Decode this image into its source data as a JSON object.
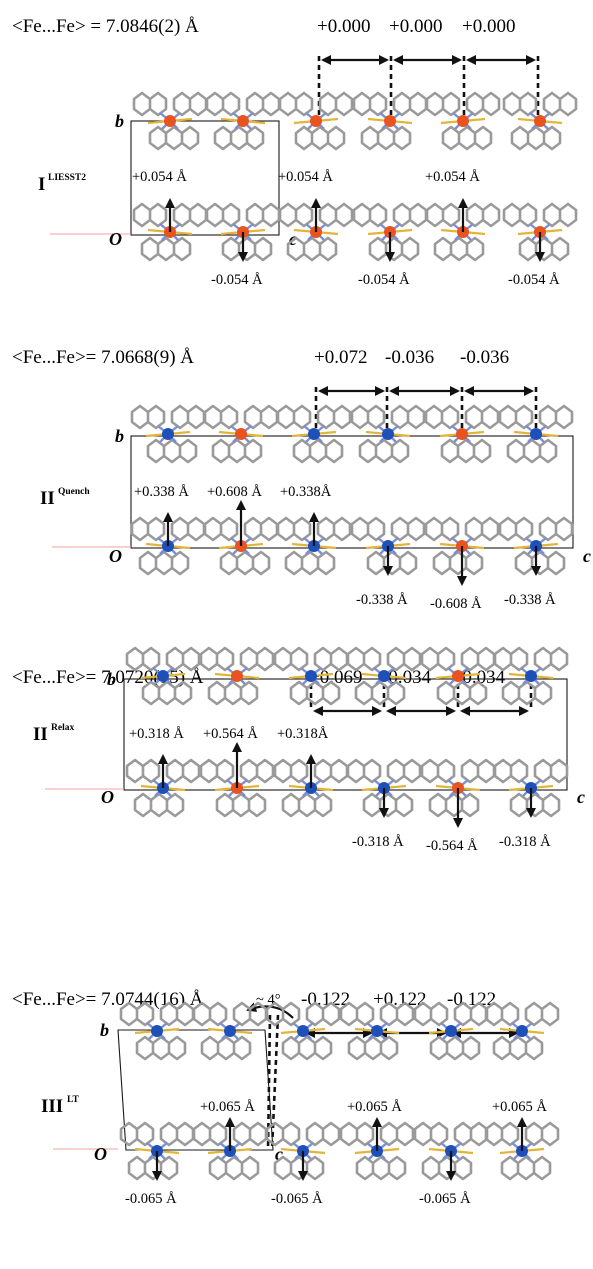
{
  "colors": {
    "high_spin_fe": "#e8531f",
    "low_spin_fe": "#1f4fb8",
    "bond_grey": "#9a9a9a",
    "nitrogen_blue": "#7b8fd6",
    "sulfur_yellow": "#e2b43a"
  },
  "axes": {
    "origin": "O",
    "b": "b",
    "c": "c"
  },
  "panels": [
    {
      "id": "p1",
      "label": "I",
      "label_sup": "LIESST2",
      "distance": "<Fe...Fe> = 7.0846(2) Å",
      "col_offsets": [
        "+0.000",
        "+0.000",
        "+0.000"
      ],
      "up_labels": [
        "+0.054 Å",
        "+0.054 Å",
        "+0.054 Å"
      ],
      "down_labels": [
        "-0.054 Å",
        "-0.054 Å",
        "-0.054 Å"
      ],
      "top_row_spin": [
        "HS",
        "HS",
        "HS",
        "HS",
        "HS",
        "HS"
      ],
      "bottom_row_spin": [
        "HS",
        "HS",
        "HS",
        "HS",
        "HS",
        "HS"
      ]
    },
    {
      "id": "p2",
      "label": "II",
      "label_sup": "Quench",
      "distance": "<Fe...Fe>= 7.0668(9) Å",
      "col_offsets": [
        "+0.072",
        "-0.036",
        "-0.036"
      ],
      "up_labels": [
        "+0.338 Å",
        "+0.608 Å",
        "+0.338Å"
      ],
      "down_labels": [
        "-0.338 Å",
        "-0.608 Å",
        "-0.338 Å"
      ],
      "top_row_spin": [
        "LS",
        "HS",
        "LS",
        "LS",
        "HS",
        "LS"
      ],
      "bottom_row_spin": [
        "LS",
        "HS",
        "LS",
        "LS",
        "HS",
        "LS"
      ]
    },
    {
      "id": "p3",
      "label": "II",
      "label_sup": "Relax",
      "distance": "<Fe...Fe>= 7.0720(15) Å",
      "col_offsets": [
        "+0.069",
        "-0.034",
        "-0.034"
      ],
      "up_labels": [
        "+0.318 Å",
        "+0.564 Å",
        "+0.318Å"
      ],
      "down_labels": [
        "-0.318 Å",
        "-0.564 Å",
        "-0.318 Å"
      ],
      "top_row_spin": [
        "LS",
        "HS",
        "LS",
        "LS",
        "HS",
        "LS"
      ],
      "bottom_row_spin": [
        "LS",
        "HS",
        "LS",
        "LS",
        "HS",
        "LS"
      ]
    },
    {
      "id": "p4",
      "label": "III",
      "label_sup": "LT",
      "distance": "<Fe...Fe>= 7.0744(16) Å",
      "col_offsets": [
        "-0.122",
        "+0.122",
        "-0.122"
      ],
      "up_labels": [
        "+0.065 Å",
        "+0.065 Å",
        "+0.065 Å"
      ],
      "down_labels": [
        "-0.065 Å",
        "-0.065 Å",
        "-0.065 Å"
      ],
      "angle": "~ 4°",
      "top_row_spin": [
        "LS",
        "LS",
        "LS",
        "LS",
        "LS",
        "LS"
      ],
      "bottom_row_spin": [
        "LS",
        "LS",
        "LS",
        "LS",
        "LS",
        "LS"
      ]
    }
  ]
}
